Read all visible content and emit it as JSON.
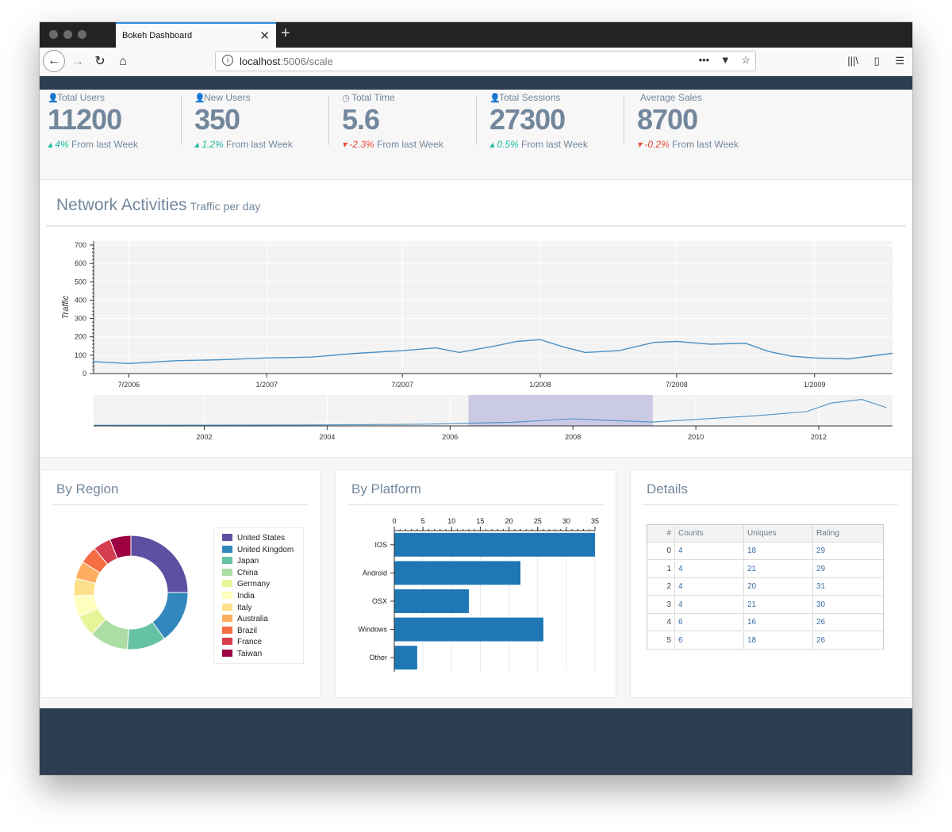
{
  "browser": {
    "tab_title": "Bokeh Dashboard",
    "url_host": "localhost",
    "url_rest": ":5006/scale"
  },
  "stats": [
    {
      "label": "Total Users",
      "icon": "user-icon",
      "value": "11200",
      "change": "4%",
      "direction": "up",
      "suffix": "From last Week"
    },
    {
      "label": "New Users",
      "icon": "user-icon",
      "value": "350",
      "change": "1.2%",
      "direction": "up",
      "suffix": "From last Week"
    },
    {
      "label": "Total Time",
      "icon": "clock-icon",
      "value": "5.6",
      "change": "-2.3%",
      "direction": "down",
      "suffix": "From last Week"
    },
    {
      "label": "Total Sessions",
      "icon": "user-icon",
      "value": "27300",
      "change": "0.5%",
      "direction": "up",
      "suffix": "From last Week"
    },
    {
      "label": "Average Sales",
      "icon": "",
      "value": "8700",
      "change": "-0.2%",
      "direction": "down",
      "suffix": "From last Week"
    }
  ],
  "network": {
    "title": "Network Activities",
    "subtitle": "Traffic per day"
  },
  "region": {
    "title": "By Region"
  },
  "platform": {
    "title": "By Platform"
  },
  "details": {
    "title": "Details",
    "columns": [
      "#",
      "Counts",
      "Uniques",
      "Rating"
    ],
    "rows": [
      [
        "0",
        "4",
        "18",
        "29"
      ],
      [
        "1",
        "4",
        "21",
        "29"
      ],
      [
        "2",
        "4",
        "20",
        "31"
      ],
      [
        "3",
        "4",
        "21",
        "30"
      ],
      [
        "4",
        "6",
        "16",
        "26"
      ],
      [
        "5",
        "6",
        "18",
        "26"
      ]
    ]
  },
  "colors": {
    "accent": "#73879c",
    "up": "#1abb9c",
    "down": "#e74c3c",
    "navy": "#2c3e50",
    "bar": "#1f77b4",
    "line": "#4a90c4",
    "selection": "#c5c5e3"
  },
  "chart_data": [
    {
      "type": "line",
      "title": "",
      "ylabel": "Traffic",
      "xlabel": "",
      "ylim": [
        0,
        700
      ],
      "y_ticks": [
        0,
        100,
        200,
        300,
        400,
        500,
        600,
        700
      ],
      "x_ticks": [
        "7/2006",
        "1/2007",
        "7/2007",
        "1/2008",
        "7/2008",
        "1/2009"
      ],
      "x_range": [
        "2006-05-15",
        "2009-04-15"
      ],
      "series": [
        {
          "x": [
            "2006-05-15",
            "2006-07-01",
            "2006-09-01",
            "2006-11-01",
            "2007-01-01",
            "2007-03-01",
            "2007-05-01",
            "2007-07-01",
            "2007-08-15",
            "2007-09-15",
            "2007-11-01",
            "2007-12-01",
            "2008-01-01",
            "2008-02-01",
            "2008-03-01",
            "2008-04-15",
            "2008-06-01",
            "2008-07-01",
            "2008-08-15",
            "2008-10-01",
            "2008-11-01",
            "2008-12-01",
            "2009-01-01",
            "2009-02-15",
            "2009-04-15"
          ],
          "y": [
            65,
            55,
            70,
            75,
            85,
            90,
            110,
            125,
            140,
            115,
            150,
            175,
            185,
            145,
            115,
            125,
            170,
            175,
            160,
            165,
            120,
            95,
            85,
            80,
            110
          ]
        }
      ]
    },
    {
      "type": "line",
      "title": "",
      "x_ticks": [
        "2002",
        "2004",
        "2006",
        "2008",
        "2010",
        "2012"
      ],
      "x_range": [
        2000.2,
        2013.2
      ],
      "ylim": [
        0,
        700
      ],
      "selection": [
        2006.3,
        2009.3
      ],
      "series": [
        {
          "x": [
            2000.2,
            2002.0,
            2004.0,
            2005.5,
            2006.3,
            2007.0,
            2008.0,
            2008.5,
            2009.3,
            2010.0,
            2011.0,
            2011.8,
            2012.2,
            2012.7,
            2013.1
          ],
          "y": [
            15,
            18,
            25,
            40,
            65,
            90,
            175,
            140,
            95,
            160,
            250,
            350,
            560,
            650,
            450
          ]
        }
      ]
    },
    {
      "type": "pie",
      "title": "By Region",
      "categories": [
        "United States",
        "United Kingdom",
        "Japan",
        "China",
        "Germany",
        "India",
        "Italy",
        "Australia",
        "Brazil",
        "France",
        "Taiwan"
      ],
      "values": [
        25,
        15,
        11,
        11,
        6,
        6,
        5,
        5,
        5,
        5,
        6
      ],
      "colors": [
        "#5e4fa2",
        "#3288bd",
        "#66c2a5",
        "#abdda4",
        "#e6f598",
        "#ffffbf",
        "#fee08b",
        "#fdae61",
        "#f46d43",
        "#d53e4f",
        "#9e0142"
      ]
    },
    {
      "type": "bar",
      "orientation": "horizontal",
      "title": "By Platform",
      "categories": [
        "IOS",
        "Android",
        "OSX",
        "Windows",
        "Other"
      ],
      "values": [
        35,
        22,
        13,
        26,
        4
      ],
      "xlim": [
        0,
        35
      ],
      "x_ticks": [
        0,
        5,
        10,
        15,
        20,
        25,
        30,
        35
      ]
    }
  ]
}
